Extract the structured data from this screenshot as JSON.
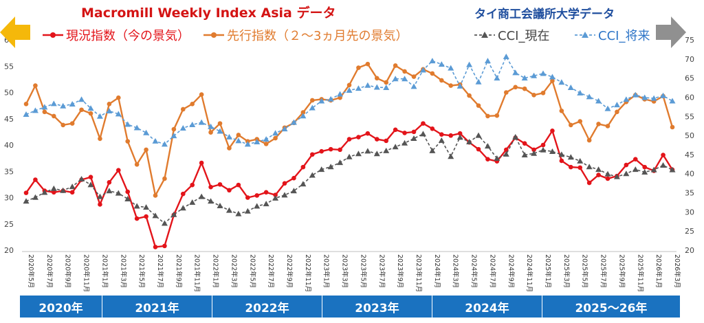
{
  "title_left": "Macromill Weekly Index Asia データ",
  "title_right": "タイ商工会議所大学データ",
  "legend": [
    {
      "label": "現況指数（今の景気）",
      "color": "#e3141a",
      "marker": "circle",
      "dash": false
    },
    {
      "label": "先行指数（２～3ヵ月先の景気）",
      "color": "#e07b2e",
      "marker": "circle",
      "dash": false
    },
    {
      "label": "CCI_現在",
      "color": "#555555",
      "marker": "triangle",
      "dash": true
    },
    {
      "label": "CCI_将来",
      "color": "#5b9bd5",
      "marker": "triangle",
      "dash": true
    }
  ],
  "years": [
    {
      "label": "2020年",
      "months": 9
    },
    {
      "label": "2021年",
      "months": 12
    },
    {
      "label": "2022年",
      "months": 12
    },
    {
      "label": "2023年",
      "months": 12
    },
    {
      "label": "2024年",
      "months": 12
    },
    {
      "label": "2025～26年",
      "months": 15
    }
  ],
  "colors": {
    "left_arrow": "#f5b80a",
    "right_arrow": "#909090",
    "year_bar": "#1a72c0"
  },
  "chart_data": {
    "type": "line",
    "x": [
      "2020年5月",
      "2020年6月",
      "2020年7月",
      "2020年8月",
      "2020年9月",
      "2020年10月",
      "2020年11月",
      "2020年12月",
      "2021年1月",
      "2021年2月",
      "2021年3月",
      "2021年4月",
      "2021年5月",
      "2021年6月",
      "2021年7月",
      "2021年8月",
      "2021年9月",
      "2021年10月",
      "2021年11月",
      "2021年12月",
      "2022年1月",
      "2022年2月",
      "2022年3月",
      "2022年4月",
      "2022年5月",
      "2022年6月",
      "2022年7月",
      "2022年8月",
      "2022年9月",
      "2022年10月",
      "2022年11月",
      "2022年12月",
      "2023年1月",
      "2023年2月",
      "2023年3月",
      "2023年4月",
      "2023年5月",
      "2023年6月",
      "2023年7月",
      "2023年8月",
      "2023年9月",
      "2023年10月",
      "2023年11月",
      "2023年12月",
      "2024年1月",
      "2024年2月",
      "2024年3月",
      "2024年4月",
      "2024年5月",
      "2024年6月",
      "2024年7月",
      "2024年8月",
      "2024年9月",
      "2024年10月",
      "2024年11月",
      "2024年12月",
      "2025年1月",
      "2025年2月",
      "2025年3月",
      "2025年4月",
      "2025年5月",
      "2025年6月",
      "2025年7月",
      "2025年8月",
      "2025年9月",
      "2025年10月",
      "2025年11月",
      "2025年12月",
      "2026年1月",
      "2026年2月",
      "2026年3月"
    ],
    "x_tick_labels": [
      "2020年5月",
      "2020年7月",
      "2020年9月",
      "2020年11月",
      "2021年1月",
      "2021年3月",
      "2021年5月",
      "2021年7月",
      "2021年9月",
      "2021年11月",
      "2022年1月",
      "2022年3月",
      "2022年5月",
      "2022年7月",
      "2022年9月",
      "2022年11月",
      "2023年1月",
      "2023年3月",
      "2023年5月",
      "2023年7月",
      "2023年9月",
      "2023年11月",
      "2024年1月",
      "2024年3月",
      "2024年5月",
      "2024年7月",
      "2024年9月",
      "2024年11月",
      "2025年1月",
      "2025年3月",
      "2025年5月",
      "2025年7月",
      "2025年9月",
      "2025年11月",
      "2026年1月",
      "2026年3月"
    ],
    "y_left": {
      "min": 20,
      "max": 60,
      "ticks": [
        20,
        25,
        30,
        35,
        40,
        45,
        50,
        55,
        60
      ]
    },
    "y_right": {
      "min": 20,
      "max": 75,
      "ticks": [
        20,
        25,
        30,
        35,
        40,
        45,
        50,
        55,
        60,
        65,
        70,
        75
      ]
    },
    "grid": false,
    "series": [
      {
        "name": "現況指数（今の景気）",
        "axis": "left",
        "color": "#e3141a",
        "values": [
          30.9,
          33.4,
          31.3,
          31.0,
          31.3,
          31.0,
          33.4,
          33.9,
          28.7,
          32.9,
          35.2,
          31.1,
          26.0,
          26.4,
          20.6,
          20.8,
          26.7,
          30.7,
          32.4,
          36.6,
          32.0,
          32.5,
          31.4,
          32.4,
          30.0,
          30.4,
          31.0,
          30.5,
          32.7,
          33.7,
          35.8,
          38.2,
          38.8,
          39.2,
          39.1,
          41.1,
          41.5,
          42.2,
          41.1,
          40.8,
          42.9,
          42.3,
          42.5,
          44.1,
          43.1,
          42.0,
          41.8,
          42.2,
          40.5,
          39.2,
          37.3,
          36.9,
          39.1,
          41.4,
          40.3,
          39.1,
          40.0,
          42.7,
          37.0,
          35.8,
          35.7,
          32.8,
          34.3,
          33.6,
          34.1,
          36.2,
          37.3,
          35.8,
          35.1,
          38.1,
          35.3
        ]
      },
      {
        "name": "先行指数（２～3ヵ月先の景気）",
        "axis": "left",
        "color": "#e07b2e",
        "values": [
          47.8,
          51.3,
          46.3,
          45.5,
          43.8,
          44.1,
          46.7,
          46.0,
          41.2,
          47.8,
          49.0,
          40.7,
          36.3,
          39.1,
          30.4,
          33.6,
          43.0,
          46.8,
          47.8,
          49.6,
          42.4,
          44.1,
          39.4,
          41.9,
          40.7,
          41.1,
          40.2,
          41.3,
          43.3,
          44.2,
          46.2,
          48.5,
          48.7,
          48.5,
          49.0,
          51.4,
          54.7,
          55.4,
          52.7,
          51.9,
          55.1,
          54.0,
          53.0,
          54.4,
          53.6,
          52.3,
          51.3,
          51.5,
          49.4,
          47.5,
          45.5,
          45.6,
          50.0,
          51.0,
          50.7,
          49.5,
          49.9,
          52.2,
          46.5,
          43.8,
          44.5,
          40.9,
          44.0,
          43.6,
          46.3,
          48.2,
          49.5,
          48.7,
          48.3,
          49.3,
          43.4
        ]
      },
      {
        "name": "CCI_現在",
        "axis": "right",
        "color": "#555555",
        "values": [
          32.8,
          33.8,
          35.1,
          36.1,
          35.6,
          36.6,
          38.6,
          37.1,
          34.0,
          35.5,
          34.9,
          33.4,
          31.5,
          31.2,
          29.0,
          27.0,
          29.3,
          31.0,
          32.5,
          34.0,
          32.8,
          31.6,
          30.4,
          29.5,
          30.2,
          31.5,
          32.1,
          33.6,
          34.4,
          35.5,
          37.3,
          39.6,
          41.1,
          41.8,
          42.9,
          44.4,
          45.2,
          45.9,
          45.2,
          46.0,
          47.0,
          48.0,
          49.2,
          50.4,
          46.0,
          48.7,
          44.5,
          49.5,
          48.3,
          50.0,
          47.2,
          44.0,
          45.1,
          49.6,
          44.9,
          45.3,
          46.2,
          45.8,
          45.0,
          44.3,
          43.3,
          41.8,
          41.1,
          39.9,
          39.2,
          40.0,
          41.1,
          40.4,
          41.0,
          42.2,
          41.0
        ]
      },
      {
        "name": "CCI_将来",
        "axis": "right",
        "color": "#5b9bd5",
        "values": [
          55.5,
          56.5,
          57.4,
          58.3,
          57.7,
          58.2,
          59.4,
          57.1,
          55.0,
          56.4,
          55.6,
          52.9,
          52.0,
          50.7,
          48.5,
          47.7,
          49.9,
          51.9,
          52.8,
          53.4,
          52.3,
          51.1,
          49.6,
          48.6,
          47.7,
          48.3,
          49.0,
          50.6,
          51.7,
          53.4,
          55.1,
          57.2,
          59.0,
          59.5,
          60.8,
          61.8,
          62.3,
          63.1,
          62.6,
          62.5,
          64.8,
          64.8,
          62.8,
          67.1,
          69.5,
          68.6,
          67.6,
          62.9,
          68.5,
          64.0,
          69.5,
          65.0,
          70.6,
          66.4,
          65.0,
          65.6,
          66.2,
          65.3,
          63.9,
          62.5,
          61.1,
          60.1,
          59.0,
          57.0,
          58.0,
          59.4,
          60.6,
          59.9,
          59.7,
          60.4,
          59.0
        ]
      }
    ]
  }
}
